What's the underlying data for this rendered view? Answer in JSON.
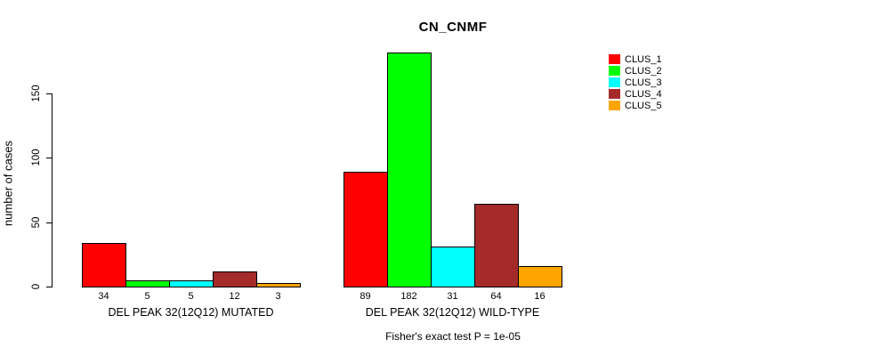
{
  "chart_data": {
    "type": "bar",
    "title": "CN_CNMF",
    "ylabel": "number of cases",
    "xlabel": "",
    "ylim": [
      0,
      150
    ],
    "yticks": [
      0,
      50,
      100,
      150
    ],
    "grid": false,
    "legend_position": "right",
    "bar_value_labels": true,
    "categories": [
      "DEL PEAK 32(12Q12) MUTATED",
      "DEL PEAK 32(12Q12) WILD-TYPE"
    ],
    "series": [
      {
        "name": "CLUS_1",
        "color": "#ff0000",
        "values": [
          34,
          89
        ]
      },
      {
        "name": "CLUS_2",
        "color": "#00ff00",
        "values": [
          5,
          182
        ]
      },
      {
        "name": "CLUS_3",
        "color": "#00ffff",
        "values": [
          5,
          31
        ]
      },
      {
        "name": "CLUS_4",
        "color": "#a52a2a",
        "values": [
          12,
          64
        ]
      },
      {
        "name": "CLUS_5",
        "color": "#ffa500",
        "values": [
          3,
          16
        ]
      }
    ],
    "annotation": "Fisher's exact test P = 1e-05",
    "axis_color": "#000000",
    "bar_outline_color": "#000000"
  }
}
